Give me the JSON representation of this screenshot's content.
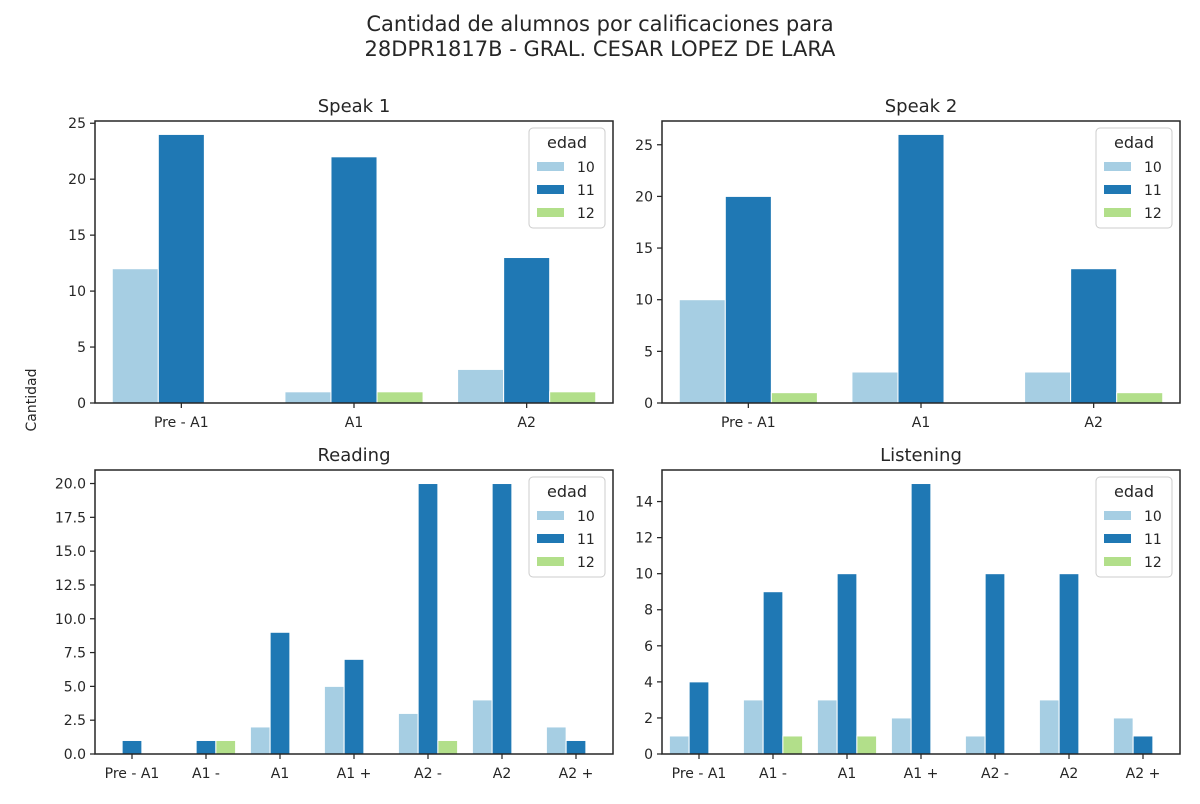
{
  "suptitle": {
    "line1": "Cantidad de alumnos por calificaciones para",
    "line2": "28DPR1817B - GRAL. CESAR LOPEZ DE LARA"
  },
  "ylabel": "Cantidad",
  "legend": {
    "title": "edad",
    "placement": "top-right",
    "entries": [
      "10",
      "11",
      "12"
    ]
  },
  "colors": {
    "10": "#a6cee3",
    "11": "#1f78b4",
    "12": "#b2df8a"
  },
  "chart_data": [
    {
      "type": "bar",
      "title": "Speak 1",
      "categories": [
        "Pre - A1",
        "A1",
        "A2"
      ],
      "series": [
        {
          "name": "10",
          "values": [
            12,
            1,
            3
          ]
        },
        {
          "name": "11",
          "values": [
            24,
            22,
            13
          ]
        },
        {
          "name": "12",
          "values": [
            0,
            1,
            1
          ]
        }
      ],
      "ylim": [
        0,
        25.2
      ],
      "yticks": [
        "0",
        "5",
        "10",
        "15",
        "20",
        "25"
      ],
      "ytick_values": [
        0,
        5,
        10,
        15,
        20,
        25
      ],
      "legend": "top-right"
    },
    {
      "type": "bar",
      "title": "Speak 2",
      "categories": [
        "Pre - A1",
        "A1",
        "A2"
      ],
      "series": [
        {
          "name": "10",
          "values": [
            10,
            3,
            3
          ]
        },
        {
          "name": "11",
          "values": [
            20,
            26,
            13
          ]
        },
        {
          "name": "12",
          "values": [
            1,
            0,
            1
          ]
        }
      ],
      "ylim": [
        0,
        27.3
      ],
      "yticks": [
        "0",
        "5",
        "10",
        "15",
        "20",
        "25"
      ],
      "ytick_values": [
        0,
        5,
        10,
        15,
        20,
        25
      ],
      "legend": "top-right"
    },
    {
      "type": "bar",
      "title": "Reading",
      "categories": [
        "Pre - A1",
        "A1 -",
        "A1",
        "A1 +",
        "A2 -",
        "A2",
        "A2 +"
      ],
      "series": [
        {
          "name": "10",
          "values": [
            0,
            0,
            2,
            5,
            3,
            4,
            2
          ]
        },
        {
          "name": "11",
          "values": [
            1,
            1,
            9,
            7,
            20,
            20,
            1
          ]
        },
        {
          "name": "12",
          "values": [
            0,
            1,
            0,
            0,
            1,
            0,
            0
          ]
        }
      ],
      "ylim": [
        0,
        21
      ],
      "yticks": [
        "0.0",
        "2.5",
        "5.0",
        "7.5",
        "10.0",
        "12.5",
        "15.0",
        "17.5",
        "20.0"
      ],
      "ytick_values": [
        0,
        2.5,
        5,
        7.5,
        10,
        12.5,
        15,
        17.5,
        20
      ],
      "legend": "top-right"
    },
    {
      "type": "bar",
      "title": "Listening",
      "categories": [
        "Pre - A1",
        "A1 -",
        "A1",
        "A1 +",
        "A2 -",
        "A2",
        "A2 +"
      ],
      "series": [
        {
          "name": "10",
          "values": [
            1,
            3,
            3,
            2,
            1,
            3,
            2
          ]
        },
        {
          "name": "11",
          "values": [
            4,
            9,
            10,
            15,
            10,
            10,
            1
          ]
        },
        {
          "name": "12",
          "values": [
            0,
            1,
            1,
            0,
            0,
            0,
            0
          ]
        }
      ],
      "ylim": [
        0,
        15.75
      ],
      "yticks": [
        "0",
        "2",
        "4",
        "6",
        "8",
        "10",
        "12",
        "14"
      ],
      "ytick_values": [
        0,
        2,
        4,
        6,
        8,
        10,
        12,
        14
      ],
      "legend": "top-right"
    }
  ]
}
